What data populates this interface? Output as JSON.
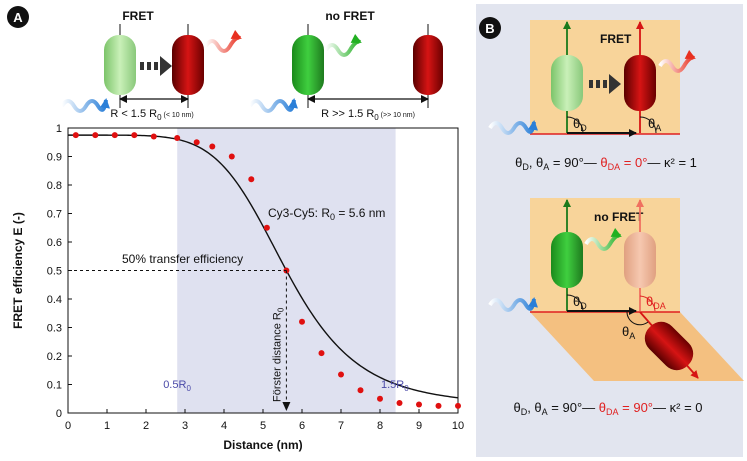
{
  "panel_a": {
    "letter": "A",
    "fret_label": "FRET",
    "no_fret_label": "no FRET",
    "dist_fret": {
      "pre": "R < 1.5 R",
      "sub": "0",
      "post": " (< 10 nm)"
    },
    "dist_nofret": {
      "pre": "R >> 1.5 R",
      "sub": "0",
      "post": " (>> 10 nm)"
    },
    "cy_label": {
      "pre": "Cy3-Cy5: R",
      "sub": "0",
      "post": " = 5.6 nm"
    },
    "transfer_label": "50% transfer efficiency",
    "forster_label": {
      "pre": "Förster distance R",
      "sub": "0"
    },
    "shade_left_label": {
      "pre": "0.5R",
      "sub": "0"
    },
    "shade_right_label": {
      "pre": "1.5R",
      "sub": "0"
    }
  },
  "panel_b": {
    "letter": "B",
    "top_label": "FRET",
    "bottom_label": "no FRET",
    "theta_d": {
      "main": "θ",
      "sub": "D"
    },
    "theta_a": {
      "main": "θ",
      "sub": "A"
    },
    "theta_da": {
      "main": "θ",
      "sub": "DA"
    },
    "eq_top": {
      "lead": "θ",
      "lead_sub": "D",
      "mid": ", θ",
      "mid_sub": "A",
      "mid_post": " = 90°— ",
      "red": "θ",
      "red_sub": "DA",
      "red_post": " = 0°",
      "tail": "— κ² = 1"
    },
    "eq_bottom": {
      "lead": "θ",
      "lead_sub": "D",
      "mid": ", θ",
      "mid_sub": "A",
      "mid_post": " = 90°— ",
      "red": "θ",
      "red_sub": "DA",
      "red_post": " = 90°",
      "tail": "— κ² = 0"
    }
  },
  "chart_data": {
    "type": "scatter",
    "xlabel": "Distance (nm)",
    "ylabel": "FRET efficiency  E  (-)",
    "xlim": [
      0,
      10
    ],
    "ylim": [
      0,
      1
    ],
    "xticks": [
      0,
      1,
      2,
      3,
      4,
      5,
      6,
      7,
      8,
      9,
      10
    ],
    "yticks": [
      0,
      0.1,
      0.2,
      0.3,
      0.4,
      0.5,
      0.6,
      0.7,
      0.8,
      0.9,
      1
    ],
    "r0": 5.6,
    "shaded_range": [
      2.8,
      8.4
    ],
    "points": [
      {
        "x": 0.2,
        "y": 0.975
      },
      {
        "x": 0.7,
        "y": 0.975
      },
      {
        "x": 1.2,
        "y": 0.975
      },
      {
        "x": 1.7,
        "y": 0.975
      },
      {
        "x": 2.2,
        "y": 0.97
      },
      {
        "x": 2.8,
        "y": 0.965
      },
      {
        "x": 3.3,
        "y": 0.95
      },
      {
        "x": 3.7,
        "y": 0.935
      },
      {
        "x": 4.2,
        "y": 0.9
      },
      {
        "x": 4.7,
        "y": 0.82
      },
      {
        "x": 5.1,
        "y": 0.65
      },
      {
        "x": 5.6,
        "y": 0.5
      },
      {
        "x": 6.0,
        "y": 0.32
      },
      {
        "x": 6.5,
        "y": 0.21
      },
      {
        "x": 7.0,
        "y": 0.135
      },
      {
        "x": 7.5,
        "y": 0.08
      },
      {
        "x": 8.0,
        "y": 0.05
      },
      {
        "x": 8.5,
        "y": 0.035
      },
      {
        "x": 9.0,
        "y": 0.03
      },
      {
        "x": 9.5,
        "y": 0.025
      },
      {
        "x": 10.0,
        "y": 0.025
      }
    ]
  }
}
